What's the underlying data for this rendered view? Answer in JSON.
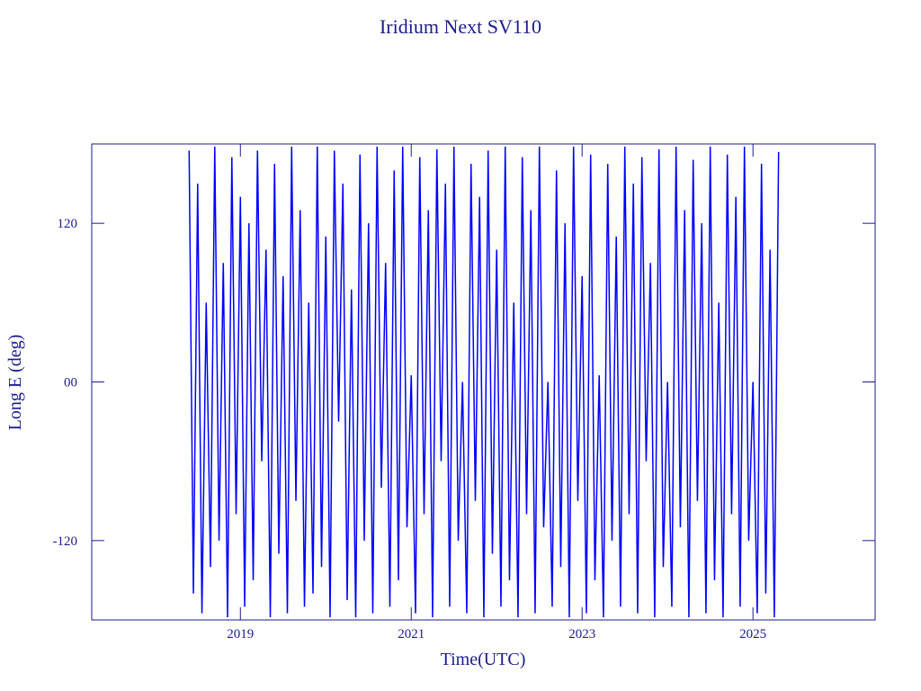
{
  "chart_data": {
    "type": "line",
    "title": "Iridium Next SV110",
    "x_label": "Time(UTC)",
    "y_label": "Long E (deg)",
    "color": "#0000ff",
    "xlim": [
      2017.26,
      2026.43
    ],
    "xticks": [
      2019,
      2021,
      2023,
      2025
    ],
    "ylim": [
      -180,
      180
    ],
    "yticks": [
      -120,
      {
        "value": 0,
        "label": "00"
      },
      120
    ],
    "x": [
      2018.4,
      2018.45,
      2018.5,
      2018.55,
      2018.6,
      2018.65,
      2018.7,
      2018.75,
      2018.8,
      2018.85,
      2018.9,
      2018.95,
      2019,
      2019.05,
      2019.1,
      2019.15,
      2019.2,
      2019.25,
      2019.3,
      2019.35,
      2019.4,
      2019.45,
      2019.5,
      2019.55,
      2019.6,
      2019.65,
      2019.7,
      2019.75,
      2019.8,
      2019.85,
      2019.9,
      2019.95,
      2020,
      2020.05,
      2020.1,
      2020.15,
      2020.2,
      2020.25,
      2020.3,
      2020.35,
      2020.4,
      2020.45,
      2020.5,
      2020.55,
      2020.6,
      2020.65,
      2020.7,
      2020.75,
      2020.8,
      2020.85,
      2020.9,
      2020.95,
      2021,
      2021.05,
      2021.1,
      2021.15,
      2021.2,
      2021.25,
      2021.3,
      2021.35,
      2021.4,
      2021.45,
      2021.5,
      2021.55,
      2021.6,
      2021.65,
      2021.7,
      2021.75,
      2021.8,
      2021.85,
      2021.9,
      2021.95,
      2022,
      2022.05,
      2022.1,
      2022.15,
      2022.2,
      2022.25,
      2022.3,
      2022.35,
      2022.4,
      2022.45,
      2022.5,
      2022.55,
      2022.6,
      2022.65,
      2022.7,
      2022.75,
      2022.8,
      2022.85,
      2022.9,
      2022.95,
      2023,
      2023.05,
      2023.1,
      2023.15,
      2023.2,
      2023.25,
      2023.3,
      2023.35,
      2023.4,
      2023.45,
      2023.5,
      2023.55,
      2023.6,
      2023.65,
      2023.7,
      2023.75,
      2023.8,
      2023.85,
      2023.9,
      2023.95,
      2024,
      2024.05,
      2024.1,
      2024.15,
      2024.2,
      2024.25,
      2024.3,
      2024.35,
      2024.4,
      2024.45,
      2024.5,
      2024.55,
      2024.6,
      2024.65,
      2024.7,
      2024.75,
      2024.8,
      2024.85,
      2024.9,
      2024.95,
      2025,
      2025.05,
      2025.1,
      2025.15,
      2025.2,
      2025.25,
      2025.3
    ],
    "values": [
      175,
      -160,
      150,
      -175,
      60,
      -140,
      178,
      -120,
      90,
      -178,
      170,
      -100,
      140,
      -170,
      120,
      -150,
      175,
      -60,
      100,
      -178,
      165,
      -130,
      80,
      -175,
      178,
      -90,
      130,
      -170,
      60,
      -160,
      178,
      -140,
      110,
      -178,
      175,
      -30,
      150,
      -165,
      70,
      -178,
      172,
      -120,
      120,
      -175,
      178,
      -80,
      90,
      -170,
      160,
      -150,
      178,
      -110,
      5,
      -175,
      170,
      -100,
      130,
      -178,
      176,
      -60,
      150,
      -170,
      178,
      -120,
      0,
      -175,
      165,
      -90,
      140,
      -178,
      175,
      -130,
      100,
      -170,
      178,
      -150,
      60,
      -178,
      170,
      -100,
      130,
      -175,
      178,
      -110,
      0,
      -170,
      160,
      -140,
      120,
      -178,
      178,
      -90,
      80,
      -175,
      172,
      -150,
      5,
      -178,
      165,
      -120,
      110,
      -170,
      178,
      -100,
      150,
      -175,
      170,
      -60,
      90,
      -178,
      176,
      -140,
      0,
      -170,
      178,
      -110,
      130,
      -178,
      168,
      -90,
      120,
      -175,
      178,
      -150,
      60,
      -178,
      172,
      -100,
      140,
      -170,
      178,
      -120,
      0,
      -175,
      165,
      -160,
      100,
      -178,
      174
    ]
  }
}
